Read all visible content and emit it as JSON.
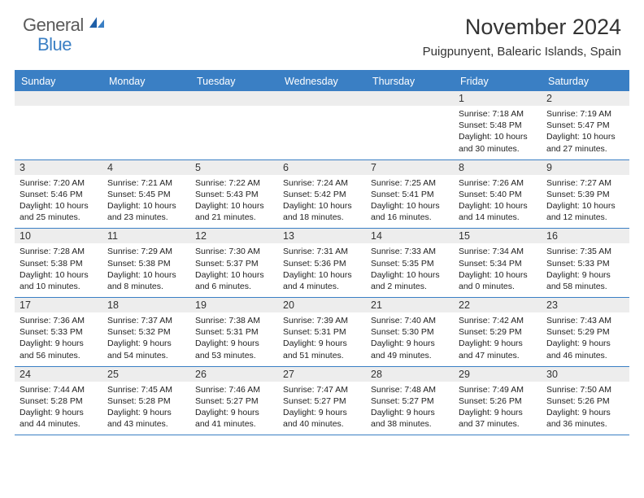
{
  "brand": {
    "word1": "General",
    "word2": "Blue"
  },
  "title": "November 2024",
  "location": "Puigpunyent, Balearic Islands, Spain",
  "colors": {
    "accent": "#3a7fc4",
    "header_bg": "#3a7fc4",
    "daynum_bg": "#ededed",
    "text": "#222222",
    "border": "#3a7fc4"
  },
  "weekdays": [
    "Sunday",
    "Monday",
    "Tuesday",
    "Wednesday",
    "Thursday",
    "Friday",
    "Saturday"
  ],
  "weeks": [
    [
      null,
      null,
      null,
      null,
      null,
      {
        "n": "1",
        "sunrise": "Sunrise: 7:18 AM",
        "sunset": "Sunset: 5:48 PM",
        "daylight1": "Daylight: 10 hours",
        "daylight2": "and 30 minutes."
      },
      {
        "n": "2",
        "sunrise": "Sunrise: 7:19 AM",
        "sunset": "Sunset: 5:47 PM",
        "daylight1": "Daylight: 10 hours",
        "daylight2": "and 27 minutes."
      }
    ],
    [
      {
        "n": "3",
        "sunrise": "Sunrise: 7:20 AM",
        "sunset": "Sunset: 5:46 PM",
        "daylight1": "Daylight: 10 hours",
        "daylight2": "and 25 minutes."
      },
      {
        "n": "4",
        "sunrise": "Sunrise: 7:21 AM",
        "sunset": "Sunset: 5:45 PM",
        "daylight1": "Daylight: 10 hours",
        "daylight2": "and 23 minutes."
      },
      {
        "n": "5",
        "sunrise": "Sunrise: 7:22 AM",
        "sunset": "Sunset: 5:43 PM",
        "daylight1": "Daylight: 10 hours",
        "daylight2": "and 21 minutes."
      },
      {
        "n": "6",
        "sunrise": "Sunrise: 7:24 AM",
        "sunset": "Sunset: 5:42 PM",
        "daylight1": "Daylight: 10 hours",
        "daylight2": "and 18 minutes."
      },
      {
        "n": "7",
        "sunrise": "Sunrise: 7:25 AM",
        "sunset": "Sunset: 5:41 PM",
        "daylight1": "Daylight: 10 hours",
        "daylight2": "and 16 minutes."
      },
      {
        "n": "8",
        "sunrise": "Sunrise: 7:26 AM",
        "sunset": "Sunset: 5:40 PM",
        "daylight1": "Daylight: 10 hours",
        "daylight2": "and 14 minutes."
      },
      {
        "n": "9",
        "sunrise": "Sunrise: 7:27 AM",
        "sunset": "Sunset: 5:39 PM",
        "daylight1": "Daylight: 10 hours",
        "daylight2": "and 12 minutes."
      }
    ],
    [
      {
        "n": "10",
        "sunrise": "Sunrise: 7:28 AM",
        "sunset": "Sunset: 5:38 PM",
        "daylight1": "Daylight: 10 hours",
        "daylight2": "and 10 minutes."
      },
      {
        "n": "11",
        "sunrise": "Sunrise: 7:29 AM",
        "sunset": "Sunset: 5:38 PM",
        "daylight1": "Daylight: 10 hours",
        "daylight2": "and 8 minutes."
      },
      {
        "n": "12",
        "sunrise": "Sunrise: 7:30 AM",
        "sunset": "Sunset: 5:37 PM",
        "daylight1": "Daylight: 10 hours",
        "daylight2": "and 6 minutes."
      },
      {
        "n": "13",
        "sunrise": "Sunrise: 7:31 AM",
        "sunset": "Sunset: 5:36 PM",
        "daylight1": "Daylight: 10 hours",
        "daylight2": "and 4 minutes."
      },
      {
        "n": "14",
        "sunrise": "Sunrise: 7:33 AM",
        "sunset": "Sunset: 5:35 PM",
        "daylight1": "Daylight: 10 hours",
        "daylight2": "and 2 minutes."
      },
      {
        "n": "15",
        "sunrise": "Sunrise: 7:34 AM",
        "sunset": "Sunset: 5:34 PM",
        "daylight1": "Daylight: 10 hours",
        "daylight2": "and 0 minutes."
      },
      {
        "n": "16",
        "sunrise": "Sunrise: 7:35 AM",
        "sunset": "Sunset: 5:33 PM",
        "daylight1": "Daylight: 9 hours",
        "daylight2": "and 58 minutes."
      }
    ],
    [
      {
        "n": "17",
        "sunrise": "Sunrise: 7:36 AM",
        "sunset": "Sunset: 5:33 PM",
        "daylight1": "Daylight: 9 hours",
        "daylight2": "and 56 minutes."
      },
      {
        "n": "18",
        "sunrise": "Sunrise: 7:37 AM",
        "sunset": "Sunset: 5:32 PM",
        "daylight1": "Daylight: 9 hours",
        "daylight2": "and 54 minutes."
      },
      {
        "n": "19",
        "sunrise": "Sunrise: 7:38 AM",
        "sunset": "Sunset: 5:31 PM",
        "daylight1": "Daylight: 9 hours",
        "daylight2": "and 53 minutes."
      },
      {
        "n": "20",
        "sunrise": "Sunrise: 7:39 AM",
        "sunset": "Sunset: 5:31 PM",
        "daylight1": "Daylight: 9 hours",
        "daylight2": "and 51 minutes."
      },
      {
        "n": "21",
        "sunrise": "Sunrise: 7:40 AM",
        "sunset": "Sunset: 5:30 PM",
        "daylight1": "Daylight: 9 hours",
        "daylight2": "and 49 minutes."
      },
      {
        "n": "22",
        "sunrise": "Sunrise: 7:42 AM",
        "sunset": "Sunset: 5:29 PM",
        "daylight1": "Daylight: 9 hours",
        "daylight2": "and 47 minutes."
      },
      {
        "n": "23",
        "sunrise": "Sunrise: 7:43 AM",
        "sunset": "Sunset: 5:29 PM",
        "daylight1": "Daylight: 9 hours",
        "daylight2": "and 46 minutes."
      }
    ],
    [
      {
        "n": "24",
        "sunrise": "Sunrise: 7:44 AM",
        "sunset": "Sunset: 5:28 PM",
        "daylight1": "Daylight: 9 hours",
        "daylight2": "and 44 minutes."
      },
      {
        "n": "25",
        "sunrise": "Sunrise: 7:45 AM",
        "sunset": "Sunset: 5:28 PM",
        "daylight1": "Daylight: 9 hours",
        "daylight2": "and 43 minutes."
      },
      {
        "n": "26",
        "sunrise": "Sunrise: 7:46 AM",
        "sunset": "Sunset: 5:27 PM",
        "daylight1": "Daylight: 9 hours",
        "daylight2": "and 41 minutes."
      },
      {
        "n": "27",
        "sunrise": "Sunrise: 7:47 AM",
        "sunset": "Sunset: 5:27 PM",
        "daylight1": "Daylight: 9 hours",
        "daylight2": "and 40 minutes."
      },
      {
        "n": "28",
        "sunrise": "Sunrise: 7:48 AM",
        "sunset": "Sunset: 5:27 PM",
        "daylight1": "Daylight: 9 hours",
        "daylight2": "and 38 minutes."
      },
      {
        "n": "29",
        "sunrise": "Sunrise: 7:49 AM",
        "sunset": "Sunset: 5:26 PM",
        "daylight1": "Daylight: 9 hours",
        "daylight2": "and 37 minutes."
      },
      {
        "n": "30",
        "sunrise": "Sunrise: 7:50 AM",
        "sunset": "Sunset: 5:26 PM",
        "daylight1": "Daylight: 9 hours",
        "daylight2": "and 36 minutes."
      }
    ]
  ]
}
